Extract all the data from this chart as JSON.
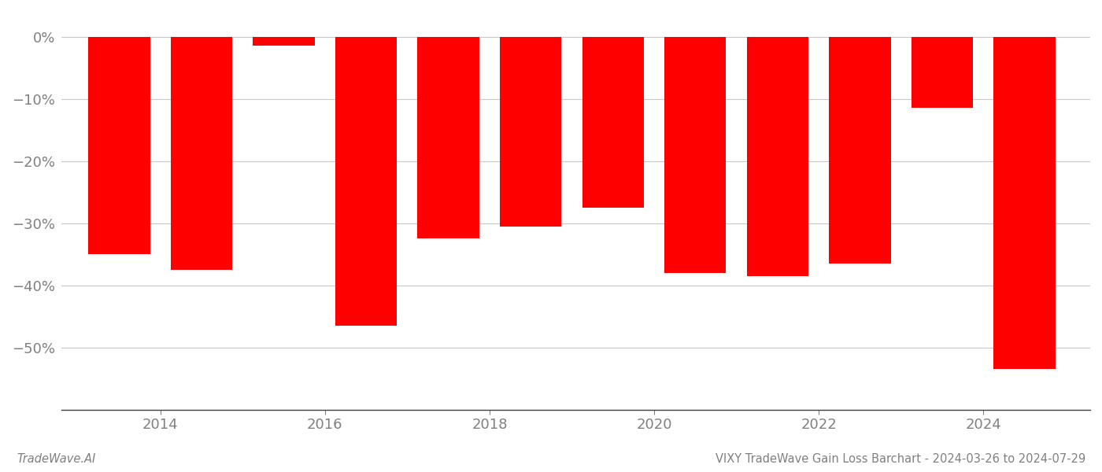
{
  "years": [
    2013,
    2014,
    2015,
    2016,
    2017,
    2018,
    2019,
    2020,
    2021,
    2022,
    2023,
    2024
  ],
  "values": [
    -35.0,
    -37.5,
    -1.5,
    -46.5,
    -32.5,
    -30.5,
    -27.5,
    -38.0,
    -38.5,
    -36.5,
    -11.5,
    -53.5
  ],
  "bar_color": "#ff0000",
  "background_color": "#ffffff",
  "grid_color": "#c8c8c8",
  "tick_label_color": "#808080",
  "ylim_min": -60,
  "ylim_max": 4,
  "yticks": [
    0,
    -10,
    -20,
    -30,
    -40,
    -50
  ],
  "xtick_positions": [
    2013.5,
    2015.5,
    2017.5,
    2019.5,
    2021.5,
    2023.5
  ],
  "xtick_labels": [
    "2014",
    "2016",
    "2018",
    "2020",
    "2022",
    "2024"
  ],
  "xlabel_bottom_left": "TradeWave.AI",
  "xlabel_bottom_right": "VIXY TradeWave Gain Loss Barchart - 2024-03-26 to 2024-07-29",
  "bar_width": 0.75,
  "spine_color": "#404040"
}
